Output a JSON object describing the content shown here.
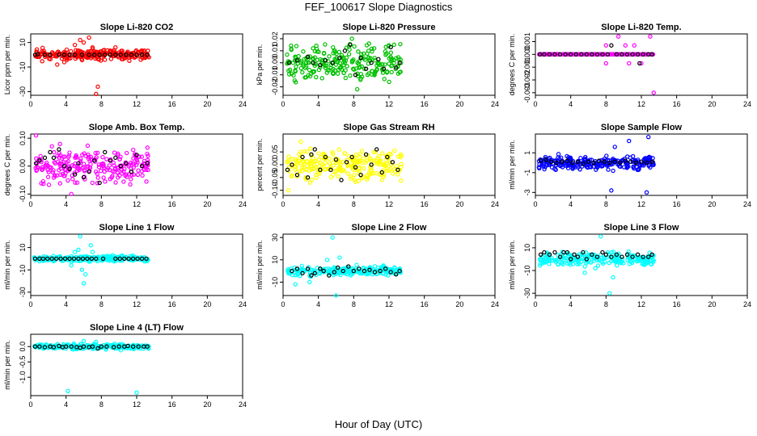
{
  "figure": {
    "title": "FEF_100617  Slope Diagnostics",
    "xlabel": "Hour of Day (UTC)"
  },
  "chart_data": [
    {
      "type": "scatter",
      "title": "Slope Li-820 CO2",
      "ylabel": "Licor ppm per min.",
      "xlim": [
        0,
        24
      ],
      "ylim": [
        -33,
        17
      ],
      "yticks": [
        -30,
        -10,
        10
      ],
      "xticks": [
        0,
        4,
        8,
        12,
        16,
        20,
        24
      ],
      "color": "#ff0000",
      "spread": 3,
      "coverage": [
        0.4,
        13.4
      ],
      "outliers": [
        [
          3.8,
          -6
        ],
        [
          5.6,
          12
        ],
        [
          6.0,
          10
        ],
        [
          6.6,
          14
        ],
        [
          7.0,
          6
        ],
        [
          7.6,
          -26
        ],
        [
          7.4,
          -32
        ],
        [
          5.0,
          8
        ],
        [
          3.0,
          -8
        ],
        [
          9.6,
          6
        ]
      ],
      "means": [
        0.5,
        0,
        0.8,
        0.5,
        1.6,
        0,
        2.2,
        0,
        3.2,
        0,
        3.8,
        0,
        4.4,
        0,
        5.0,
        0,
        5.8,
        0,
        6.6,
        0,
        7.2,
        0,
        7.8,
        0,
        8.4,
        0,
        9.0,
        0,
        9.6,
        0,
        10.2,
        0,
        10.8,
        0,
        11.4,
        0,
        12.0,
        0,
        12.6,
        0,
        13.2,
        0
      ],
      "seed": 11
    },
    {
      "type": "scatter",
      "title": "Slope Li-820 Pressure",
      "ylabel": "kPa per min.",
      "xlim": [
        0,
        24
      ],
      "ylim": [
        -0.027,
        0.024
      ],
      "yticks": [
        -0.02,
        -0.01,
        0.0,
        0.01,
        0.02
      ],
      "tickFormat": "2",
      "xticks": [
        0,
        4,
        8,
        12,
        16,
        20,
        24
      ],
      "color": "#00c000",
      "spread": 0.011,
      "coverage": [
        0.4,
        13.4
      ],
      "outliers": [
        [
          7.8,
          0.02
        ],
        [
          8.4,
          -0.022
        ],
        [
          3.4,
          0.012
        ]
      ],
      "means": [
        0.7,
        0.0,
        1.6,
        0.002,
        2.8,
        0.005,
        3.4,
        0.0,
        4.2,
        -0.002,
        4.8,
        0.002,
        5.6,
        0.0,
        6.4,
        0.004,
        7.0,
        0.01,
        7.6,
        0.015,
        8.2,
        -0.01,
        8.8,
        0.004,
        9.4,
        -0.005,
        10.0,
        0.0,
        10.8,
        0.003,
        11.4,
        -0.005,
        12.2,
        0.013,
        12.8,
        -0.004,
        13.2,
        0.0
      ],
      "seed": 23
    },
    {
      "type": "scatter",
      "title": "Slope Li-820 Temp.",
      "ylabel": "degrees C per min.",
      "xlim": [
        0,
        24
      ],
      "ylim": [
        -0.0032,
        0.0016
      ],
      "yticks": [
        -0.003,
        -0.002,
        -0.001,
        0.0,
        0.001
      ],
      "tickFormat": "3",
      "xticks": [
        0,
        4,
        8,
        12,
        16,
        20,
        24
      ],
      "color": "#ff00ff",
      "spread": 0,
      "coverage": [
        0.4,
        13.4
      ],
      "outliers": [
        [
          8.0,
          0.0007
        ],
        [
          8.0,
          -0.0007
        ],
        [
          10.2,
          0.0007
        ],
        [
          10.6,
          -0.0007
        ],
        [
          11.2,
          0.0007
        ],
        [
          13.0,
          0.0014
        ],
        [
          13.4,
          -0.003
        ],
        [
          9.4,
          0.0014
        ],
        [
          12.0,
          -0.0007
        ]
      ],
      "means": [
        0.5,
        0,
        1.0,
        0,
        1.6,
        0,
        2.2,
        0,
        2.8,
        0,
        3.4,
        0,
        4.0,
        0,
        4.6,
        0,
        5.2,
        0,
        5.8,
        0,
        6.4,
        0,
        7.0,
        0,
        7.6,
        0,
        8.2,
        0,
        8.6,
        0.0007,
        9.2,
        0,
        9.8,
        0,
        10.4,
        0,
        11.0,
        0,
        11.6,
        0,
        12.2,
        0,
        12.8,
        0,
        13.2,
        0,
        11.8,
        -0.0007
      ],
      "seed": 37
    },
    {
      "type": "scatter",
      "title": "Slope Amb. Box Temp.",
      "ylabel": "degrees C per min.",
      "xlim": [
        0,
        24
      ],
      "ylim": [
        -0.105,
        0.115
      ],
      "yticks": [
        -0.1,
        0.0,
        0.1
      ],
      "tickFormat": "2",
      "xticks": [
        0,
        4,
        8,
        12,
        16,
        20,
        24
      ],
      "color": "#ff00ff",
      "spread": 0.045,
      "coverage": [
        0.4,
        13.4
      ],
      "outliers": [
        [
          4.6,
          -0.1
        ],
        [
          0.6,
          0.11
        ]
      ],
      "means": [
        0.6,
        0.01,
        1.0,
        0.02,
        1.6,
        0.03,
        2.2,
        0.05,
        2.6,
        0.03,
        3.2,
        0.06,
        3.8,
        0.0,
        4.4,
        -0.01,
        5.0,
        -0.03,
        5.4,
        0.01,
        6.0,
        -0.04,
        6.6,
        -0.02,
        7.2,
        0.02,
        7.8,
        -0.06,
        8.4,
        0.05,
        9.0,
        0.02,
        9.6,
        0.03,
        10.2,
        0.0,
        10.8,
        0.01,
        11.4,
        -0.02,
        12.0,
        0.04,
        12.6,
        0.0,
        13.2,
        0.01
      ],
      "seed": 41
    },
    {
      "type": "scatter",
      "title": "Slope Gas Stream RH",
      "ylabel": "percent per min.",
      "xlim": [
        0,
        24
      ],
      "ylim": [
        -0.12,
        0.12
      ],
      "yticks": [
        -0.1,
        -0.05,
        0.0,
        0.05
      ],
      "tickFormat": "2",
      "xticks": [
        0,
        4,
        8,
        12,
        16,
        20,
        24
      ],
      "color": "#ffff00",
      "spread": 0.045,
      "coverage": [
        0.4,
        13.4
      ],
      "outliers": [
        [
          0.6,
          -0.1
        ],
        [
          2.0,
          0.09
        ]
      ],
      "means": [
        0.5,
        -0.02,
        1.0,
        0.0,
        1.6,
        -0.04,
        2.2,
        0.03,
        2.8,
        -0.05,
        3.2,
        0.04,
        3.6,
        0.06,
        4.2,
        -0.02,
        4.8,
        0.03,
        5.4,
        -0.02,
        6.0,
        0.02,
        6.6,
        -0.06,
        7.2,
        0.01,
        7.8,
        0.03,
        8.2,
        -0.01,
        8.8,
        -0.04,
        9.4,
        0.04,
        10.0,
        0.0,
        10.6,
        0.06,
        11.2,
        -0.03,
        11.8,
        0.03,
        12.4,
        0.01,
        13.0,
        -0.02
      ],
      "seed": 53
    },
    {
      "type": "scatter",
      "title": "Slope Sample Flow",
      "ylabel": "ml/min per min.",
      "xlim": [
        0,
        24
      ],
      "ylim": [
        -3.3,
        2.9
      ],
      "yticks": [
        -3,
        -1,
        1
      ],
      "xticks": [
        0,
        4,
        8,
        12,
        16,
        20,
        24
      ],
      "color": "#0000ff",
      "spread": 0.5,
      "coverage": [
        0.4,
        13.4
      ],
      "outliers": [
        [
          9.0,
          1.6
        ],
        [
          10.6,
          2.2
        ],
        [
          12.6,
          -3.0
        ],
        [
          8.6,
          -2.8
        ],
        [
          12.8,
          2.6
        ]
      ],
      "means": [
        0.6,
        0.2,
        1.2,
        0.3,
        1.8,
        0.1,
        2.4,
        0.0,
        3.0,
        0.1,
        3.6,
        0.2,
        4.2,
        0.0,
        4.8,
        0.1,
        5.4,
        -0.1,
        6.0,
        0.1,
        6.6,
        0.0,
        7.2,
        0.2,
        7.8,
        0.1,
        8.4,
        0.0,
        9.0,
        0.1,
        9.6,
        0.0,
        10.2,
        0.2,
        10.8,
        0.1,
        11.4,
        0.0,
        12.0,
        0.1,
        12.6,
        0.0,
        13.2,
        0.1
      ],
      "seed": 67
    },
    {
      "type": "scatter",
      "title": "Slope Line 1 Flow",
      "ylabel": "ml/min per min.",
      "xlim": [
        0,
        24
      ],
      "ylim": [
        -33,
        22
      ],
      "yticks": [
        -30,
        -10,
        10
      ],
      "xticks": [
        0,
        4,
        8,
        12,
        16,
        20,
        24
      ],
      "color": "#00ffff",
      "spread": 1.8,
      "coverage": [
        0.4,
        13.4
      ],
      "outliers": [
        [
          5.6,
          20
        ],
        [
          6.8,
          12
        ],
        [
          5.0,
          6
        ],
        [
          5.4,
          8
        ],
        [
          5.8,
          -10
        ],
        [
          6.2,
          -14
        ],
        [
          4.6,
          -6
        ],
        [
          7.0,
          6
        ],
        [
          6.0,
          -22
        ]
      ],
      "means": [
        0.5,
        0,
        1.0,
        0,
        1.4,
        0,
        1.9,
        0,
        2.4,
        0,
        2.9,
        0,
        3.4,
        0,
        3.9,
        0,
        4.4,
        0,
        4.9,
        0,
        5.4,
        0,
        5.9,
        0,
        6.4,
        0,
        6.9,
        0,
        7.4,
        0,
        8.2,
        0,
        9.6,
        0,
        10.1,
        0,
        10.6,
        0,
        11.1,
        0,
        11.6,
        0,
        12.1,
        0,
        12.6,
        0,
        13.1,
        0
      ],
      "seed": 71
    },
    {
      "type": "scatter",
      "title": "Slope Line 2 Flow",
      "ylabel": "ml/min per min.",
      "xlim": [
        0,
        24
      ],
      "ylim": [
        -22,
        33
      ],
      "yticks": [
        -10,
        10,
        30
      ],
      "xticks": [
        0,
        4,
        8,
        12,
        16,
        20,
        24
      ],
      "color": "#00ffff",
      "spread": 3,
      "coverage": [
        0.4,
        13.4
      ],
      "outliers": [
        [
          5.6,
          30
        ],
        [
          6.0,
          -22
        ],
        [
          5.0,
          10
        ],
        [
          3.0,
          -10
        ],
        [
          6.4,
          12
        ],
        [
          1.4,
          -12
        ]
      ],
      "means": [
        1.0,
        0,
        1.6,
        2,
        2.2,
        -2,
        2.8,
        2,
        3.2,
        -4,
        3.6,
        -2,
        4.2,
        2,
        4.6,
        0,
        5.2,
        -4,
        5.8,
        -1,
        6.2,
        3,
        6.8,
        0,
        7.4,
        4,
        8.0,
        0,
        8.6,
        2,
        9.2,
        0,
        9.8,
        1,
        10.4,
        -1,
        11.0,
        0,
        11.6,
        2,
        12.2,
        -1,
        12.8,
        -3,
        13.2,
        0
      ],
      "seed": 83
    },
    {
      "type": "scatter",
      "title": "Slope Line 3 Flow",
      "ylabel": "ml/min per min.",
      "xlim": [
        0,
        24
      ],
      "ylim": [
        -32,
        22
      ],
      "yticks": [
        -30,
        -10,
        10
      ],
      "xticks": [
        0,
        4,
        8,
        12,
        16,
        20,
        24
      ],
      "color": "#00ffff",
      "spread": 4,
      "coverage": [
        0.4,
        13.4
      ],
      "outliers": [
        [
          7.4,
          20
        ],
        [
          8.8,
          -16
        ],
        [
          8.4,
          -30
        ],
        [
          5.6,
          -12
        ],
        [
          6.8,
          -8
        ]
      ],
      "means": [
        0.6,
        4,
        1.0,
        6,
        1.6,
        4,
        2.2,
        6,
        2.8,
        2,
        3.2,
        6,
        3.6,
        6,
        4.0,
        0,
        4.4,
        4,
        4.8,
        2,
        5.4,
        6,
        5.8,
        0,
        6.4,
        4,
        7.0,
        2,
        7.6,
        6,
        8.0,
        4,
        8.6,
        2,
        9.2,
        4,
        9.8,
        2,
        10.4,
        4,
        11.0,
        2,
        11.6,
        4,
        12.2,
        2,
        12.8,
        2,
        13.2,
        4
      ],
      "seed": 97
    },
    {
      "type": "scatter",
      "title": "Slope Line 4 (LT) Flow",
      "ylabel": "ml/min per min.",
      "xlim": [
        0,
        24
      ],
      "ylim": [
        -1.6,
        0.4
      ],
      "yticks": [
        -1.0,
        -0.5,
        0.0
      ],
      "tickFormat": "1",
      "xticks": [
        0,
        4,
        8,
        12,
        16,
        20,
        24
      ],
      "color": "#00ffff",
      "spread": 0.06,
      "coverage": [
        0.4,
        13.4
      ],
      "outliers": [
        [
          4.2,
          -1.45
        ],
        [
          12.0,
          -1.5
        ],
        [
          6.0,
          0.18
        ],
        [
          7.4,
          0.15
        ],
        [
          10.2,
          -0.12
        ]
      ],
      "means": [
        0.5,
        0.0,
        1.0,
        0.0,
        1.6,
        -0.02,
        2.2,
        0.0,
        2.6,
        -0.02,
        3.2,
        0.02,
        3.6,
        -0.02,
        4.0,
        0.0,
        4.6,
        0.0,
        5.2,
        -0.02,
        5.6,
        -0.04,
        6.0,
        0.0,
        6.6,
        -0.02,
        7.0,
        0.0,
        7.6,
        -0.06,
        8.0,
        0.0,
        8.6,
        0.0,
        9.4,
        -0.02,
        10.0,
        0.0,
        10.6,
        0.0,
        11.0,
        0.02,
        11.6,
        0.0,
        12.2,
        0.0,
        12.8,
        0.0,
        13.2,
        0.0
      ],
      "seed": 101
    }
  ]
}
